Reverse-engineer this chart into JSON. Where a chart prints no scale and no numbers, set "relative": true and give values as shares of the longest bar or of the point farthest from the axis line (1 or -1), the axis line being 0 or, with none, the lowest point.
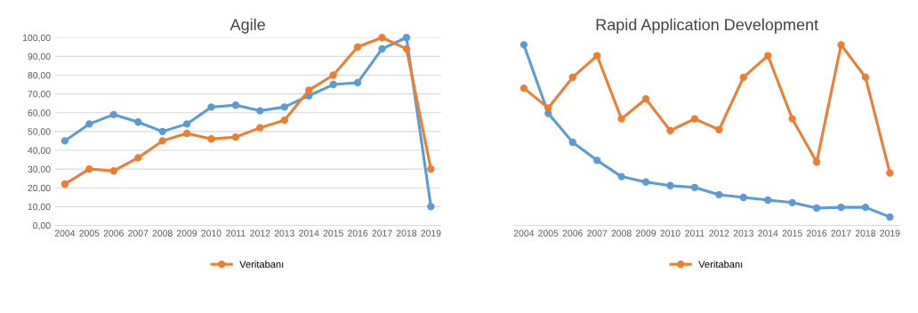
{
  "chart_data": [
    {
      "type": "line",
      "title": "Agile",
      "categories": [
        "2004",
        "2005",
        "2006",
        "2007",
        "2008",
        "2009",
        "2010",
        "2011",
        "2012",
        "2013",
        "2014",
        "2015",
        "2016",
        "2017",
        "2018",
        "2019"
      ],
      "series": [
        {
          "color": "#5b9bd5",
          "values": [
            45,
            54,
            59,
            55,
            50,
            54,
            63,
            64,
            61,
            63,
            69,
            75,
            76,
            94,
            100,
            10
          ]
        },
        {
          "name": "Veritabanı",
          "color": "#ed7d31",
          "values": [
            22,
            30,
            29,
            36,
            45,
            49,
            46,
            47,
            52,
            56,
            72,
            80,
            95,
            100,
            94,
            30
          ]
        }
      ],
      "ylim": [
        0,
        100
      ],
      "yticks": [
        {
          "value": 0,
          "label": "0,00"
        },
        {
          "value": 10,
          "label": "10,00"
        },
        {
          "value": 20,
          "label": "20,00"
        },
        {
          "value": 30,
          "label": "30,00"
        },
        {
          "value": 40,
          "label": "40,00"
        },
        {
          "value": 50,
          "label": "50,00"
        },
        {
          "value": 60,
          "label": "60,00"
        },
        {
          "value": 70,
          "label": "70,00"
        },
        {
          "value": 80,
          "label": "80,00"
        },
        {
          "value": 90,
          "label": "90,00"
        },
        {
          "value": 100,
          "label": "100,00"
        }
      ],
      "grid": "y",
      "legend": "bottom",
      "marker": "circle",
      "line_style": "solid"
    },
    {
      "type": "line",
      "title": "Rapid Application Development",
      "categories": [
        "2004",
        "2005",
        "2006",
        "2007",
        "2008",
        "2009",
        "2010",
        "2011",
        "2012",
        "2013",
        "2014",
        "2015",
        "2016",
        "2017",
        "2018",
        "2019"
      ],
      "relative": true,
      "series": [
        {
          "color": "#5b9bd5",
          "values": [
            1.0,
            0.62,
            0.46,
            0.36,
            0.27,
            0.24,
            0.22,
            0.21,
            0.17,
            0.155,
            0.14,
            0.126,
            0.096,
            0.1,
            0.1,
            0.046
          ]
        },
        {
          "name": "Veritabanı",
          "color": "#ed7d31",
          "values": [
            0.76,
            0.65,
            0.82,
            0.94,
            0.59,
            0.7,
            0.525,
            0.59,
            0.53,
            0.82,
            0.94,
            0.59,
            0.35,
            1.0,
            0.82,
            0.29
          ]
        }
      ],
      "tick_labels": "x",
      "legend": "bottom",
      "marker": "circle",
      "line_style": "solid"
    }
  ]
}
